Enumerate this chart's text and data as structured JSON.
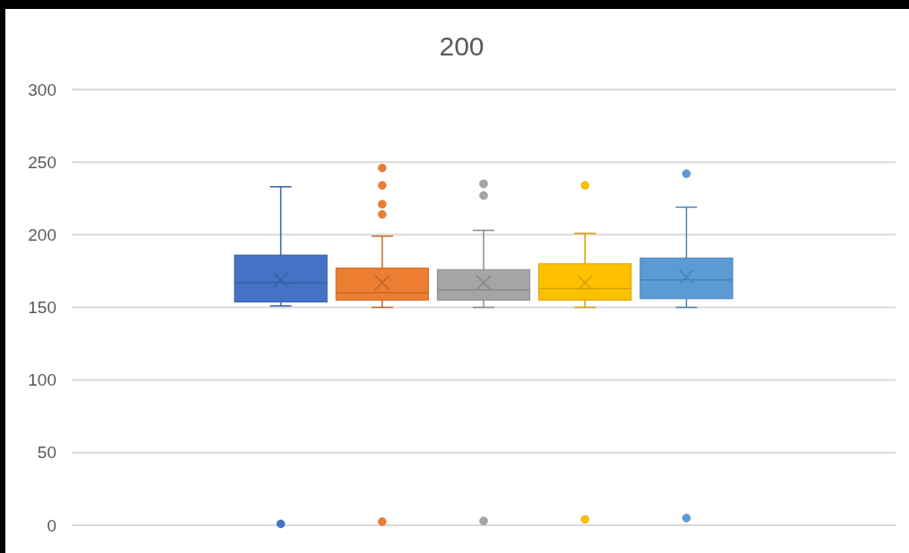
{
  "chart_data": {
    "type": "box",
    "title": "200",
    "categories": [
      null
    ],
    "ylim": [
      0,
      300
    ],
    "yticks": [
      0,
      50,
      100,
      150,
      200,
      250,
      300
    ],
    "grid": "y",
    "series": [
      {
        "color": "#4472c4",
        "boxes": [
          {
            "low": 151,
            "q1": 153.7,
            "median": 167,
            "q3": 186,
            "high": 233,
            "mean": 169,
            "outliers": [
              1
            ]
          }
        ]
      },
      {
        "color": "#ed7d31",
        "boxes": [
          {
            "low": 150,
            "q1": 155,
            "median": 160,
            "q3": 177,
            "high": 199,
            "mean": 167,
            "outliers": [
              2.5,
              214,
              221,
              234,
              246
            ]
          }
        ]
      },
      {
        "color": "#a5a5a5",
        "boxes": [
          {
            "low": 150,
            "q1": 155,
            "median": 162,
            "q3": 176,
            "high": 203,
            "mean": 167,
            "outliers": [
              3,
              227,
              235
            ]
          }
        ]
      },
      {
        "color": "#ffc000",
        "boxes": [
          {
            "low": 150,
            "q1": 155,
            "median": 163,
            "q3": 180,
            "high": 201,
            "mean": 167,
            "outliers": [
              4,
              234
            ]
          }
        ]
      },
      {
        "color": "#5b9bd5",
        "boxes": [
          {
            "low": 150,
            "q1": 156,
            "median": 169,
            "q3": 184,
            "high": 219,
            "mean": 171,
            "outliers": [
              5,
              242
            ]
          }
        ]
      }
    ]
  }
}
